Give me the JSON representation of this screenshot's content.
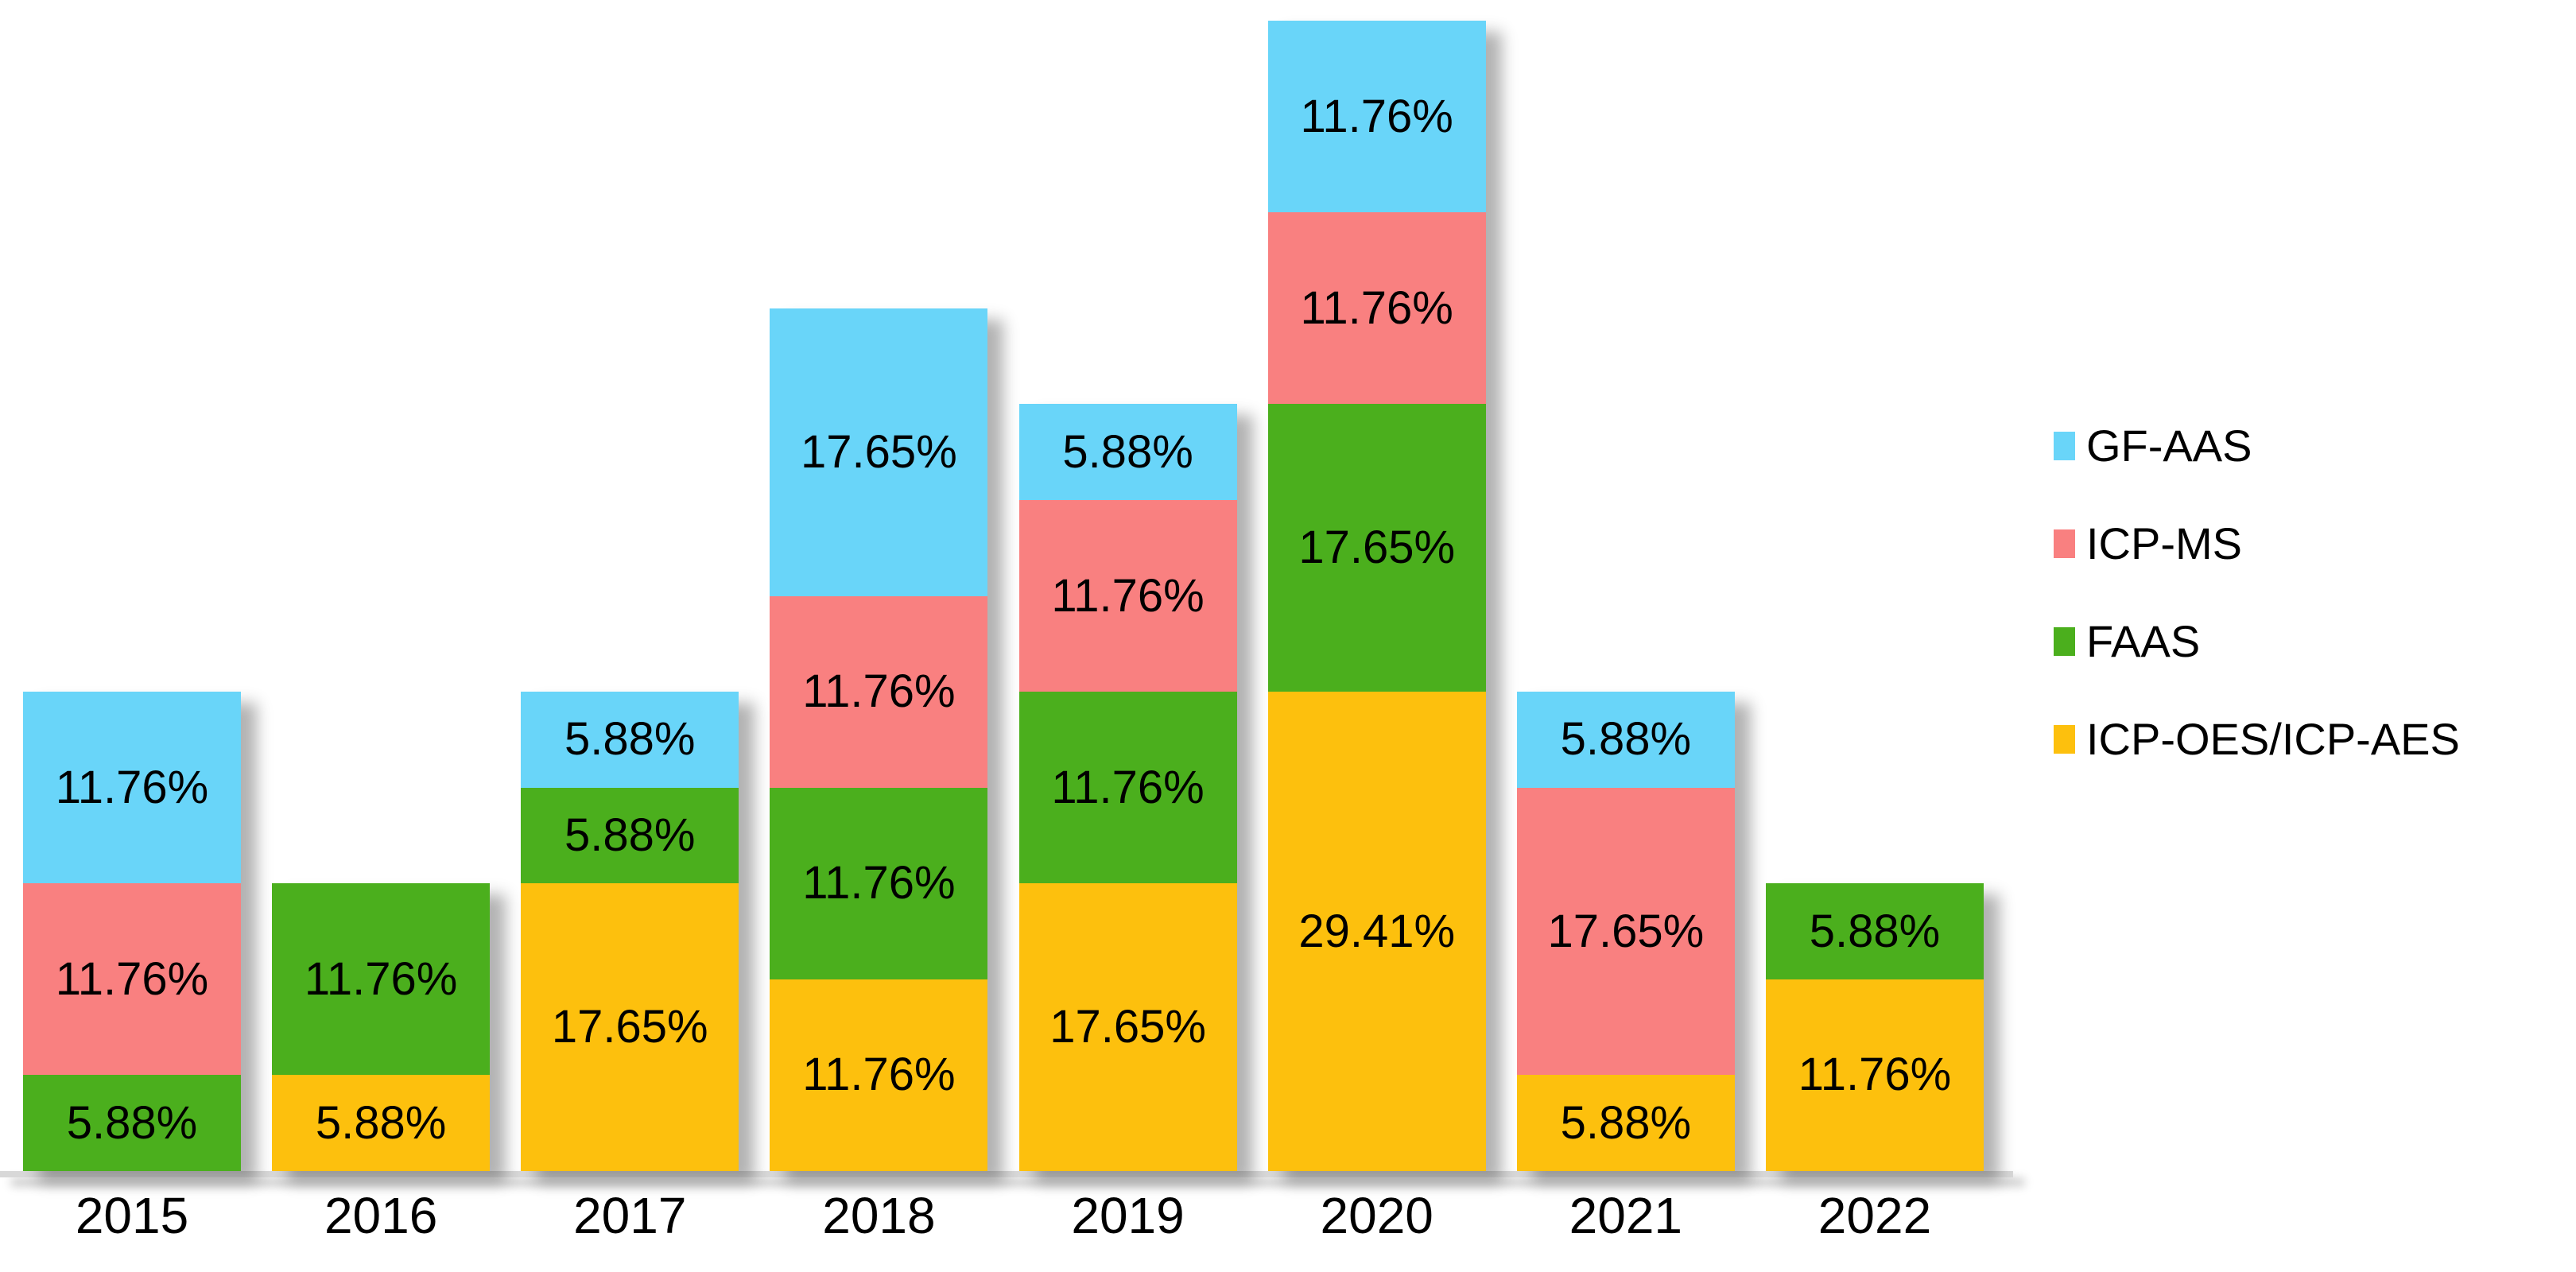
{
  "chart_data": {
    "type": "bar",
    "stacked": true,
    "orientation": "vertical",
    "background_color": "#ffffff",
    "text_color": "#000000",
    "title": "",
    "xlabel": "",
    "ylabel": "",
    "categories": [
      "2015",
      "2016",
      "2017",
      "2018",
      "2019",
      "2020",
      "2021",
      "2022"
    ],
    "series": [
      {
        "name": "ICP-OES/ICP-AES",
        "color": "#FDC00D",
        "values": [
          0,
          5.88,
          17.65,
          11.76,
          17.65,
          29.41,
          5.88,
          11.76
        ]
      },
      {
        "name": "FAAS",
        "color": "#4BAF1D",
        "values": [
          5.88,
          11.76,
          5.88,
          11.76,
          11.76,
          17.65,
          0,
          5.88
        ]
      },
      {
        "name": "ICP-MS",
        "color": "#F98080",
        "values": [
          11.76,
          0,
          0,
          11.76,
          11.76,
          11.76,
          17.65,
          0
        ]
      },
      {
        "name": "GF-AAS",
        "color": "#69D5F9",
        "values": [
          11.76,
          0,
          5.88,
          17.65,
          5.88,
          11.76,
          5.88,
          0
        ]
      }
    ],
    "data_label_suffix": "%",
    "data_label_decimals": 2,
    "legend_order": [
      "GF-AAS",
      "ICP-MS",
      "FAAS",
      "ICP-OES/ICP-AES"
    ],
    "legend_position": "right",
    "axis": {
      "y_axis_visible": false,
      "gridlines": false,
      "x_baseline_visible": true,
      "baseline_color": "#d8d8d8"
    }
  }
}
